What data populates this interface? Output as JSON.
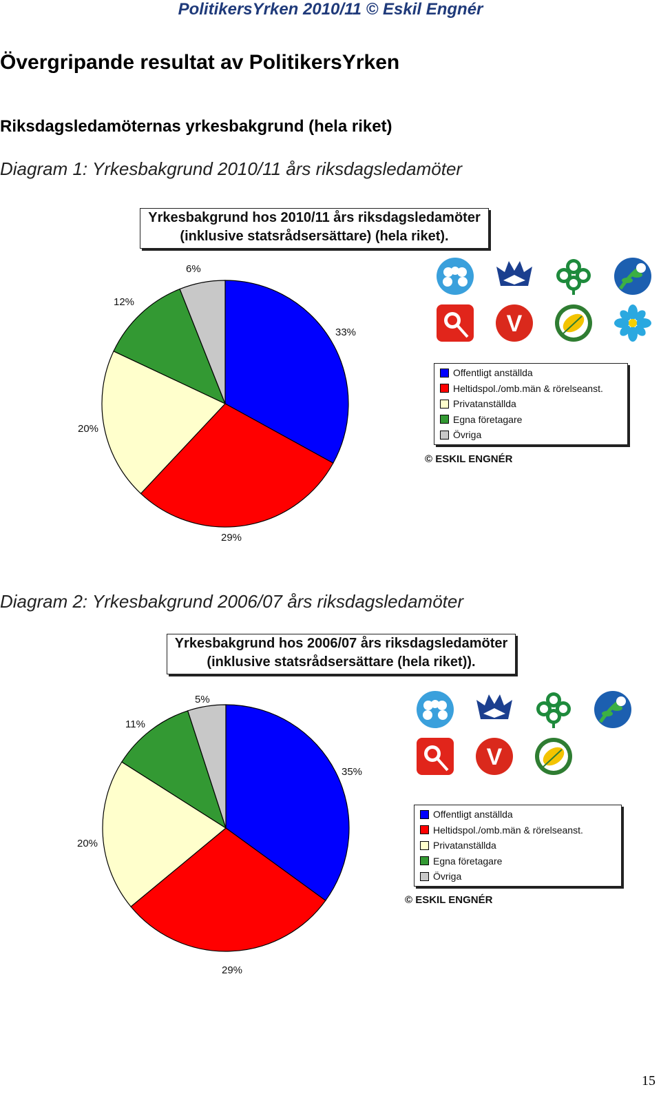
{
  "header": "PolitikersYrken 2010/11 © Eskil Engnér",
  "heading": "Övergripande resultat av PolitikersYrken",
  "subheading": "Riksdagsledamöternas yrkesbakgrund (hela riket)",
  "page_number": "15",
  "diagram1": {
    "caption": "Diagram 1: Yrkesbakgrund 2010/11 års riksdagsledamöter",
    "title_line1": "Yrkesbakgrund hos 2010/11 års riksdagsledamöter",
    "title_line2": "(inklusive statsrådsersättare) (hela riket).",
    "copyright": "© ESKIL ENGNÉR"
  },
  "diagram2": {
    "caption": "Diagram 2: Yrkesbakgrund 2006/07 års riksdagsledamöter",
    "title_line1": "Yrkesbakgrund hos 2006/07 års riksdagsledamöter",
    "title_line2": "(inklusive statsrådsersättare (hela riket)).",
    "copyright": "© ESKIL ENGNÉR"
  },
  "legend_labels": [
    "Offentligt anställda",
    "Heltidspol./omb.män & rörelseanst.",
    "Privatanställda",
    "Egna företagare",
    "Övriga"
  ],
  "colors": [
    "#0000ff",
    "#ff0000",
    "#ffffcc",
    "#339933",
    "#c8c8c8"
  ],
  "party_logos_1": [
    "moderaterna-logo",
    "kristdemokraterna-logo",
    "centerpartiet-logo",
    "folkpartiet-logo",
    "socialdemokraterna-logo",
    "vansterpartiet-logo",
    "miljopartiet-logo",
    "sverigedemokraterna-logo"
  ],
  "party_logos_2": [
    "moderaterna-logo",
    "kristdemokraterna-logo",
    "centerpartiet-logo",
    "folkpartiet-logo",
    "socialdemokraterna-logo",
    "vansterpartiet-logo",
    "miljopartiet-logo"
  ],
  "chart_data": [
    {
      "type": "pie",
      "title": "Yrkesbakgrund hos 2010/11 års riksdagsledamöter (inklusive statsrådsersättare) (hela riket).",
      "categories": [
        "Offentligt anställda",
        "Heltidspol./omb.män & rörelseanst.",
        "Privatanställda",
        "Egna företagare",
        "Övriga"
      ],
      "values": [
        33,
        29,
        20,
        12,
        6
      ],
      "labels": [
        "33%",
        "29%",
        "20%",
        "12%",
        "6%"
      ],
      "legend_position": "right"
    },
    {
      "type": "pie",
      "title": "Yrkesbakgrund hos 2006/07 års riksdagsledamöter (inklusive statsrådsersättare (hela riket)).",
      "categories": [
        "Offentligt anställda",
        "Heltidspol./omb.män & rörelseanst.",
        "Privatanställda",
        "Egna företagare",
        "Övriga"
      ],
      "values": [
        35,
        29,
        20,
        11,
        5
      ],
      "labels": [
        "35%",
        "29%",
        "20%",
        "11%",
        "5%"
      ],
      "legend_position": "right"
    }
  ]
}
